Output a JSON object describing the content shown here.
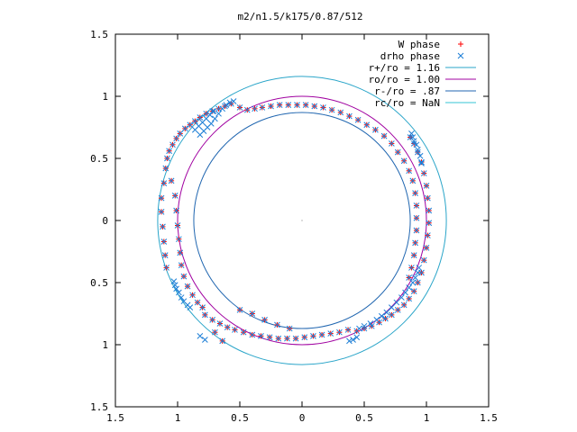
{
  "chart_data": {
    "type": "scatter",
    "title": "m2/n1.5/k175/0.87/512",
    "xlabel": "",
    "ylabel": "",
    "xlim": [
      -1.5,
      1.5
    ],
    "ylim": [
      -1.5,
      1.5
    ],
    "grid": false,
    "legend_position": "top-right",
    "x_ticks": [
      {
        "value": -1.5,
        "label": "1.5"
      },
      {
        "value": -1.0,
        "label": "1"
      },
      {
        "value": -0.5,
        "label": "0.5"
      },
      {
        "value": 0.0,
        "label": "0"
      },
      {
        "value": 0.5,
        "label": "0.5"
      },
      {
        "value": 1.0,
        "label": "1"
      },
      {
        "value": 1.5,
        "label": "1.5"
      }
    ],
    "y_ticks": [
      {
        "value": 1.5,
        "label": "1.5"
      },
      {
        "value": 1.0,
        "label": "1"
      },
      {
        "value": 0.5,
        "label": "0.5"
      },
      {
        "value": 0.0,
        "label": "0"
      },
      {
        "value": -0.5,
        "label": "0.5"
      },
      {
        "value": -1.0,
        "label": "1"
      },
      {
        "value": -1.5,
        "label": "1.5"
      }
    ],
    "series": [
      {
        "name": "W phase",
        "kind": "points",
        "marker": "+",
        "color": "#ff0000",
        "points": [
          [
            -1.096,
            0.42
          ],
          [
            -1.084,
            0.5
          ],
          [
            -1.068,
            0.56
          ],
          [
            -1.04,
            0.61
          ],
          [
            -1.01,
            0.66
          ],
          [
            -0.98,
            0.7
          ],
          [
            -0.94,
            0.74
          ],
          [
            -0.9,
            0.77
          ],
          [
            -0.86,
            0.8
          ],
          [
            -0.82,
            0.83
          ],
          [
            -0.77,
            0.86
          ],
          [
            -0.72,
            0.88
          ],
          [
            -0.67,
            0.9
          ],
          [
            -0.62,
            0.92
          ],
          [
            -0.57,
            0.94
          ],
          [
            -1.11,
            0.3
          ],
          [
            -1.13,
            0.18
          ],
          [
            -1.13,
            0.07
          ],
          [
            -1.12,
            -0.05
          ],
          [
            -1.11,
            -0.17
          ],
          [
            -1.1,
            -0.28
          ],
          [
            -1.09,
            -0.38
          ],
          [
            -1.05,
            0.32
          ],
          [
            -1.02,
            0.2
          ],
          [
            -1.01,
            0.08
          ],
          [
            -1.0,
            -0.04
          ],
          [
            -0.99,
            -0.15
          ],
          [
            -0.98,
            -0.26
          ],
          [
            -0.97,
            -0.36
          ],
          [
            -0.95,
            -0.45
          ],
          [
            -0.92,
            -0.53
          ],
          [
            -0.88,
            -0.6
          ],
          [
            -0.84,
            -0.66
          ],
          [
            -0.8,
            -0.7
          ],
          [
            -0.5,
            0.91
          ],
          [
            -0.44,
            0.89
          ],
          [
            -0.38,
            0.9
          ],
          [
            -0.32,
            0.91
          ],
          [
            -0.25,
            0.92
          ],
          [
            -0.18,
            0.93
          ],
          [
            -0.11,
            0.93
          ],
          [
            -0.04,
            0.93
          ],
          [
            0.03,
            0.93
          ],
          [
            0.1,
            0.92
          ],
          [
            0.17,
            0.91
          ],
          [
            0.24,
            0.89
          ],
          [
            0.31,
            0.87
          ],
          [
            0.38,
            0.84
          ],
          [
            0.45,
            0.81
          ],
          [
            0.52,
            0.77
          ],
          [
            0.59,
            0.73
          ],
          [
            0.66,
            0.68
          ],
          [
            0.72,
            0.62
          ],
          [
            0.77,
            0.55
          ],
          [
            0.82,
            0.48
          ],
          [
            0.86,
            0.4
          ],
          [
            0.89,
            0.32
          ],
          [
            0.91,
            0.22
          ],
          [
            0.92,
            0.12
          ],
          [
            0.92,
            0.02
          ],
          [
            0.92,
            -0.08
          ],
          [
            0.91,
            -0.18
          ],
          [
            0.9,
            -0.28
          ],
          [
            0.88,
            -0.38
          ],
          [
            0.86,
            -0.46
          ],
          [
            0.87,
            0.67
          ],
          [
            0.9,
            0.62
          ],
          [
            0.93,
            0.55
          ],
          [
            0.96,
            0.47
          ],
          [
            0.98,
            0.38
          ],
          [
            1.0,
            0.28
          ],
          [
            1.01,
            0.18
          ],
          [
            1.02,
            0.08
          ],
          [
            1.02,
            -0.02
          ],
          [
            1.01,
            -0.12
          ],
          [
            1.0,
            -0.22
          ],
          [
            0.98,
            -0.32
          ],
          [
            0.96,
            -0.42
          ],
          [
            0.93,
            -0.5
          ],
          [
            0.9,
            -0.57
          ],
          [
            0.86,
            -0.63
          ],
          [
            0.82,
            -0.68
          ],
          [
            0.77,
            -0.72
          ],
          [
            0.72,
            -0.76
          ],
          [
            0.67,
            -0.79
          ],
          [
            0.62,
            -0.82
          ],
          [
            0.56,
            -0.85
          ],
          [
            0.5,
            -0.87
          ],
          [
            0.44,
            -0.89
          ],
          [
            -0.78,
            -0.76
          ],
          [
            -0.72,
            -0.8
          ],
          [
            -0.66,
            -0.83
          ],
          [
            -0.6,
            -0.86
          ],
          [
            -0.54,
            -0.88
          ],
          [
            -0.47,
            -0.9
          ],
          [
            -0.4,
            -0.92
          ],
          [
            -0.33,
            -0.93
          ],
          [
            -0.26,
            -0.94
          ],
          [
            -0.19,
            -0.95
          ],
          [
            -0.12,
            -0.95
          ],
          [
            -0.05,
            -0.95
          ],
          [
            0.02,
            -0.94
          ],
          [
            0.09,
            -0.93
          ],
          [
            0.16,
            -0.92
          ],
          [
            0.23,
            -0.91
          ],
          [
            0.3,
            -0.9
          ],
          [
            0.37,
            -0.88
          ],
          [
            -0.7,
            -0.9
          ],
          [
            -0.64,
            -0.97
          ],
          [
            -0.5,
            -0.72
          ],
          [
            -0.4,
            -0.75
          ],
          [
            -0.3,
            -0.8
          ],
          [
            -0.2,
            -0.84
          ],
          [
            -0.1,
            -0.87
          ]
        ]
      },
      {
        "name": "drho phase",
        "kind": "points",
        "marker": "x",
        "color": "#1e7fd6",
        "points": [
          [
            -0.55,
            0.96
          ],
          [
            -0.58,
            0.95
          ],
          [
            -0.61,
            0.93
          ],
          [
            -0.64,
            0.9
          ],
          [
            -0.67,
            0.86
          ],
          [
            -0.7,
            0.82
          ],
          [
            -0.73,
            0.78
          ],
          [
            -0.76,
            0.75
          ],
          [
            -0.79,
            0.72
          ],
          [
            -0.82,
            0.69
          ],
          [
            -0.86,
            0.73
          ],
          [
            -0.83,
            0.76
          ],
          [
            -0.8,
            0.79
          ],
          [
            -0.77,
            0.82
          ],
          [
            -0.74,
            0.85
          ],
          [
            -0.71,
            0.88
          ],
          [
            -1.03,
            -0.49
          ],
          [
            -1.02,
            -0.52
          ],
          [
            -1.01,
            -0.55
          ],
          [
            -0.99,
            -0.58
          ],
          [
            -0.97,
            -0.62
          ],
          [
            -0.95,
            -0.65
          ],
          [
            -0.92,
            -0.68
          ],
          [
            -0.9,
            -0.7
          ],
          [
            -0.82,
            -0.93
          ],
          [
            -0.78,
            -0.96
          ],
          [
            0.88,
            0.7
          ],
          [
            0.89,
            0.67
          ],
          [
            0.9,
            0.64
          ],
          [
            0.92,
            0.61
          ],
          [
            0.93,
            0.57
          ],
          [
            0.95,
            0.52
          ],
          [
            0.96,
            0.46
          ],
          [
            0.94,
            -0.38
          ],
          [
            0.93,
            -0.42
          ],
          [
            0.91,
            -0.46
          ],
          [
            0.89,
            -0.5
          ],
          [
            0.86,
            -0.54
          ],
          [
            0.83,
            -0.58
          ],
          [
            0.8,
            -0.62
          ],
          [
            0.76,
            -0.66
          ],
          [
            0.72,
            -0.7
          ],
          [
            0.68,
            -0.74
          ],
          [
            0.64,
            -0.77
          ],
          [
            0.6,
            -0.8
          ],
          [
            0.55,
            -0.83
          ],
          [
            0.5,
            -0.85
          ],
          [
            0.46,
            -0.87
          ],
          [
            0.44,
            -0.94
          ],
          [
            0.41,
            -0.96
          ],
          [
            0.38,
            -0.97
          ]
        ]
      },
      {
        "name": "r+/ro = 1.16",
        "kind": "circle",
        "radius": 1.16,
        "color": "#2aa5c9"
      },
      {
        "name": "ro/ro = 1.00",
        "kind": "circle",
        "radius": 1.0,
        "color": "#a000a0"
      },
      {
        "name": "r-/ro = .87",
        "kind": "circle",
        "radius": 0.87,
        "color": "#2066b0"
      },
      {
        "name": "rc/ro = NaN",
        "kind": "circle",
        "radius": null,
        "color": "#35c4d4"
      }
    ]
  }
}
